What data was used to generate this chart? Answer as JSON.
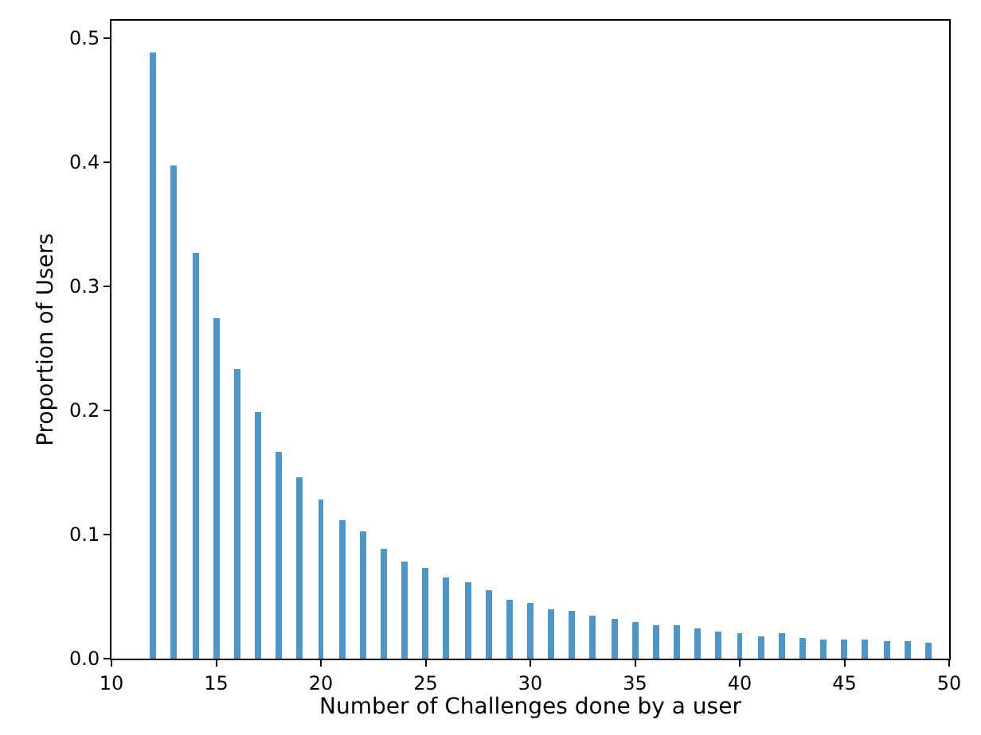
{
  "chart_data": {
    "type": "bar",
    "xlabel": "Number of Challenges done by a user",
    "ylabel": "Proportion of Users",
    "x": [
      12,
      13,
      14,
      15,
      16,
      17,
      18,
      19,
      20,
      21,
      22,
      23,
      24,
      25,
      26,
      27,
      28,
      29,
      30,
      31,
      32,
      33,
      34,
      35,
      36,
      37,
      38,
      39,
      40,
      41,
      42,
      43,
      44,
      45,
      46,
      47,
      48,
      49
    ],
    "values": [
      0.489,
      0.398,
      0.327,
      0.274,
      0.233,
      0.199,
      0.167,
      0.146,
      0.128,
      0.112,
      0.103,
      0.089,
      0.078,
      0.073,
      0.066,
      0.061,
      0.055,
      0.048,
      0.045,
      0.04,
      0.038,
      0.035,
      0.032,
      0.029,
      0.027,
      0.027,
      0.024,
      0.022,
      0.021,
      0.018,
      0.02,
      0.017,
      0.016,
      0.016,
      0.016,
      0.014,
      0.014,
      0.013
    ],
    "color": "#4e95c8",
    "xlim": [
      10,
      50
    ],
    "xticks": [
      10,
      15,
      20,
      25,
      30,
      35,
      40,
      45,
      50
    ],
    "ylim": [
      0,
      0.514
    ],
    "yticks": [
      {
        "value": 0,
        "label": "0.0"
      },
      0.1,
      0.2,
      0.3,
      0.4,
      0.5
    ]
  }
}
